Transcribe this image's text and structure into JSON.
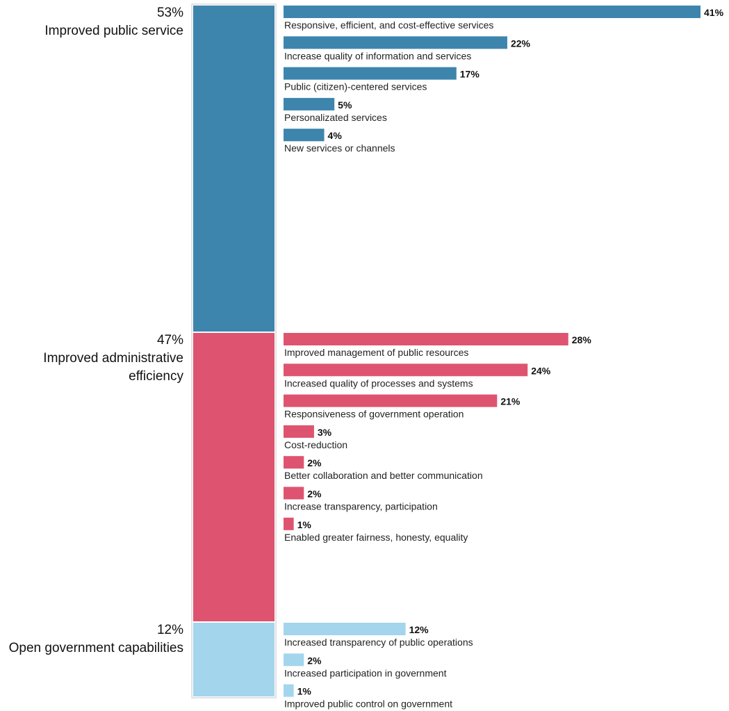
{
  "chart_data": {
    "type": "bar",
    "colors": {
      "improved_public_service": "#3d85ad",
      "improved_administrative_efficiency": "#de5470",
      "open_government_capabilities": "#a3d5ed",
      "stack_border": "#d8d8d8"
    },
    "groups": [
      {
        "pct": "53%",
        "label_lines": [
          "Improved public service"
        ],
        "value": 53,
        "color": "#3d85ad",
        "bars": [
          {
            "label": "Responsive, efficient, and cost-effective services",
            "value": 41,
            "value_label": "41%"
          },
          {
            "label": "Increase quality of information and services",
            "value": 22,
            "value_label": "22%"
          },
          {
            "label": "Public (citizen)-centered services",
            "value": 17,
            "value_label": "17%"
          },
          {
            "label": "Personalizated services",
            "value": 5,
            "value_label": "5%"
          },
          {
            "label": "New services or channels",
            "value": 4,
            "value_label": "4%"
          }
        ]
      },
      {
        "pct": "47%",
        "label_lines": [
          "Improved administrative",
          "efficiency"
        ],
        "value": 47,
        "color": "#de5470",
        "bars": [
          {
            "label": "Improved management of public resources",
            "value": 28,
            "value_label": "28%"
          },
          {
            "label": "Increased quality of processes and systems",
            "value": 24,
            "value_label": "24%"
          },
          {
            "label": "Responsiveness of government operation",
            "value": 21,
            "value_label": "21%"
          },
          {
            "label": "Cost-reduction",
            "value": 3,
            "value_label": "3%"
          },
          {
            "label": "Better collaboration and better communication",
            "value": 2,
            "value_label": "2%"
          },
          {
            "label": "Increase transparency, participation",
            "value": 2,
            "value_label": "2%"
          },
          {
            "label": "Enabled greater fairness, honesty, equality",
            "value": 1,
            "value_label": "1%"
          }
        ]
      },
      {
        "pct": "12%",
        "label_lines": [
          "Open government capabilities"
        ],
        "value": 12,
        "color": "#a3d5ed",
        "bars": [
          {
            "label": "Increased transparency of public operations",
            "value": 12,
            "value_label": "12%"
          },
          {
            "label": "Increased participation in government",
            "value": 2,
            "value_label": "2%"
          },
          {
            "label": "Improved public control on government",
            "value": 1,
            "value_label": "1%"
          }
        ]
      }
    ]
  }
}
